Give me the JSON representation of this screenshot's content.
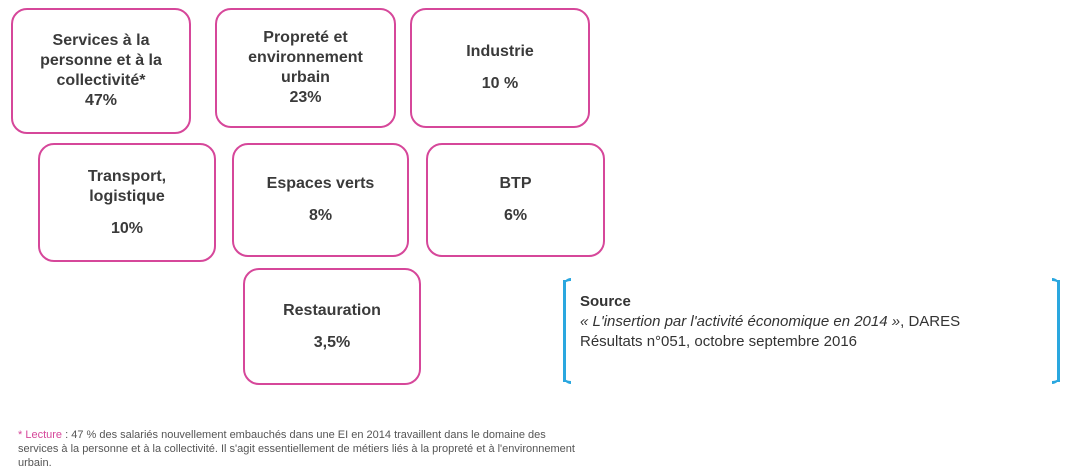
{
  "nodes": [
    {
      "lines": [
        "Services à la",
        "personne et à la",
        "collectivité*"
      ],
      "value": "47%"
    },
    {
      "lines": [
        "Propreté et",
        "environnement",
        "urbain"
      ],
      "value": "23%"
    },
    {
      "lines": [
        "Industrie"
      ],
      "value": "10 %"
    },
    {
      "lines": [
        "Transport,",
        "logistique"
      ],
      "value": "10%"
    },
    {
      "lines": [
        "Espaces verts"
      ],
      "value": "8%"
    },
    {
      "lines": [
        "BTP"
      ],
      "value": "6%"
    },
    {
      "lines": [
        "Restauration"
      ],
      "value": "3,5%"
    }
  ],
  "source": {
    "title": "Source",
    "citation": "« L'insertion par l'activité économique en 2014 »",
    "rest": ", DARES",
    "line2": "Résultats n°051, octobre septembre 2016"
  },
  "footnote": {
    "label": "* Lecture",
    "lines": [
      " : 47 % des salariés nouvellement embauchés dans une EI en 2014 travaillent dans le domaine des",
      "services à la personne et à la collectivité. Il s'agit essentiellement de métiers liés à la propreté et à l'environnement",
      "urbain."
    ]
  }
}
